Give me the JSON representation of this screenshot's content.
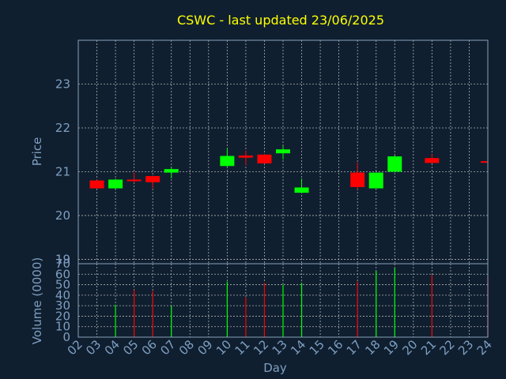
{
  "colors": {
    "background": "#0f1f30",
    "up": "#00ff00",
    "down": "#ff0000",
    "text": "#7f9fc0",
    "title": "#ffff00",
    "grid": "#b0b0b0"
  },
  "chart_data": [
    {
      "type": "candlestick",
      "title": "CSWC - last updated 23/06/2025",
      "ylabel": "Price",
      "ylim": [
        18.9,
        24.0
      ],
      "yticks": [
        "19",
        "20",
        "21",
        "22",
        "23"
      ],
      "grid": true,
      "candles": [
        {
          "day": "02",
          "x": 1,
          "open": 20.8,
          "high": 20.82,
          "low": 20.62,
          "close": 20.62
        },
        {
          "day": "03",
          "x": 2,
          "open": 20.62,
          "high": 20.84,
          "low": 20.6,
          "close": 20.82
        },
        {
          "day": "04",
          "x": 3,
          "open": 20.82,
          "high": 20.98,
          "low": 20.75,
          "close": 20.8
        },
        {
          "day": "05",
          "x": 4,
          "open": 20.9,
          "high": 20.92,
          "low": 20.62,
          "close": 20.76
        },
        {
          "day": "06",
          "x": 5,
          "open": 20.98,
          "high": 21.1,
          "low": 20.85,
          "close": 21.06
        },
        {
          "day": "09",
          "x": 8,
          "open": 21.13,
          "high": 21.53,
          "low": 21.12,
          "close": 21.36
        },
        {
          "day": "10",
          "x": 9,
          "open": 21.37,
          "high": 21.48,
          "low": 21.16,
          "close": 21.32
        },
        {
          "day": "11",
          "x": 10,
          "open": 21.39,
          "high": 21.4,
          "low": 21.18,
          "close": 21.19
        },
        {
          "day": "12",
          "x": 11,
          "open": 21.42,
          "high": 21.58,
          "low": 21.28,
          "close": 21.51
        },
        {
          "day": "13",
          "x": 12,
          "open": 20.52,
          "high": 20.84,
          "low": 20.52,
          "close": 20.64
        },
        {
          "day": "16",
          "x": 15,
          "open": 20.98,
          "high": 21.21,
          "low": 20.6,
          "close": 20.65
        },
        {
          "day": "17",
          "x": 16,
          "open": 20.62,
          "high": 20.98,
          "low": 20.62,
          "close": 20.98
        },
        {
          "day": "18",
          "x": 17,
          "open": 21.0,
          "high": 21.37,
          "low": 20.99,
          "close": 21.35
        },
        {
          "day": "20",
          "x": 19,
          "open": 21.31,
          "high": 21.4,
          "low": 21.19,
          "close": 21.2
        },
        {
          "day": "23",
          "x": 22,
          "open": 21.24,
          "high": 21.24,
          "low": 20.92,
          "close": 21.22
        }
      ]
    },
    {
      "type": "bar",
      "ylabel": "Volume (0000)",
      "xlabel": "Day",
      "ylim": [
        0,
        70
      ],
      "yticks": [
        "0",
        "10",
        "20",
        "30",
        "40",
        "50",
        "60",
        "70"
      ],
      "xticks": [
        "02",
        "03",
        "04",
        "05",
        "06",
        "07",
        "08",
        "09",
        "10",
        "11",
        "12",
        "13",
        "14",
        "15",
        "16",
        "17",
        "18",
        "19",
        "20",
        "21",
        "22",
        "23",
        "24"
      ],
      "grid": true,
      "bars": [
        {
          "x": 2,
          "value": 31,
          "dir": "up"
        },
        {
          "x": 3,
          "value": 45,
          "dir": "down"
        },
        {
          "x": 4,
          "value": 44,
          "dir": "down"
        },
        {
          "x": 5,
          "value": 30,
          "dir": "up"
        },
        {
          "x": 8,
          "value": 53,
          "dir": "up"
        },
        {
          "x": 9,
          "value": 38,
          "dir": "down"
        },
        {
          "x": 10,
          "value": 52,
          "dir": "down"
        },
        {
          "x": 11,
          "value": 50,
          "dir": "up"
        },
        {
          "x": 12,
          "value": 52,
          "dir": "up"
        },
        {
          "x": 15,
          "value": 53,
          "dir": "down"
        },
        {
          "x": 16,
          "value": 63,
          "dir": "up"
        },
        {
          "x": 17,
          "value": 66,
          "dir": "up"
        },
        {
          "x": 19,
          "value": 59,
          "dir": "down"
        },
        {
          "x": 22,
          "value": 58,
          "dir": "down"
        }
      ]
    }
  ]
}
